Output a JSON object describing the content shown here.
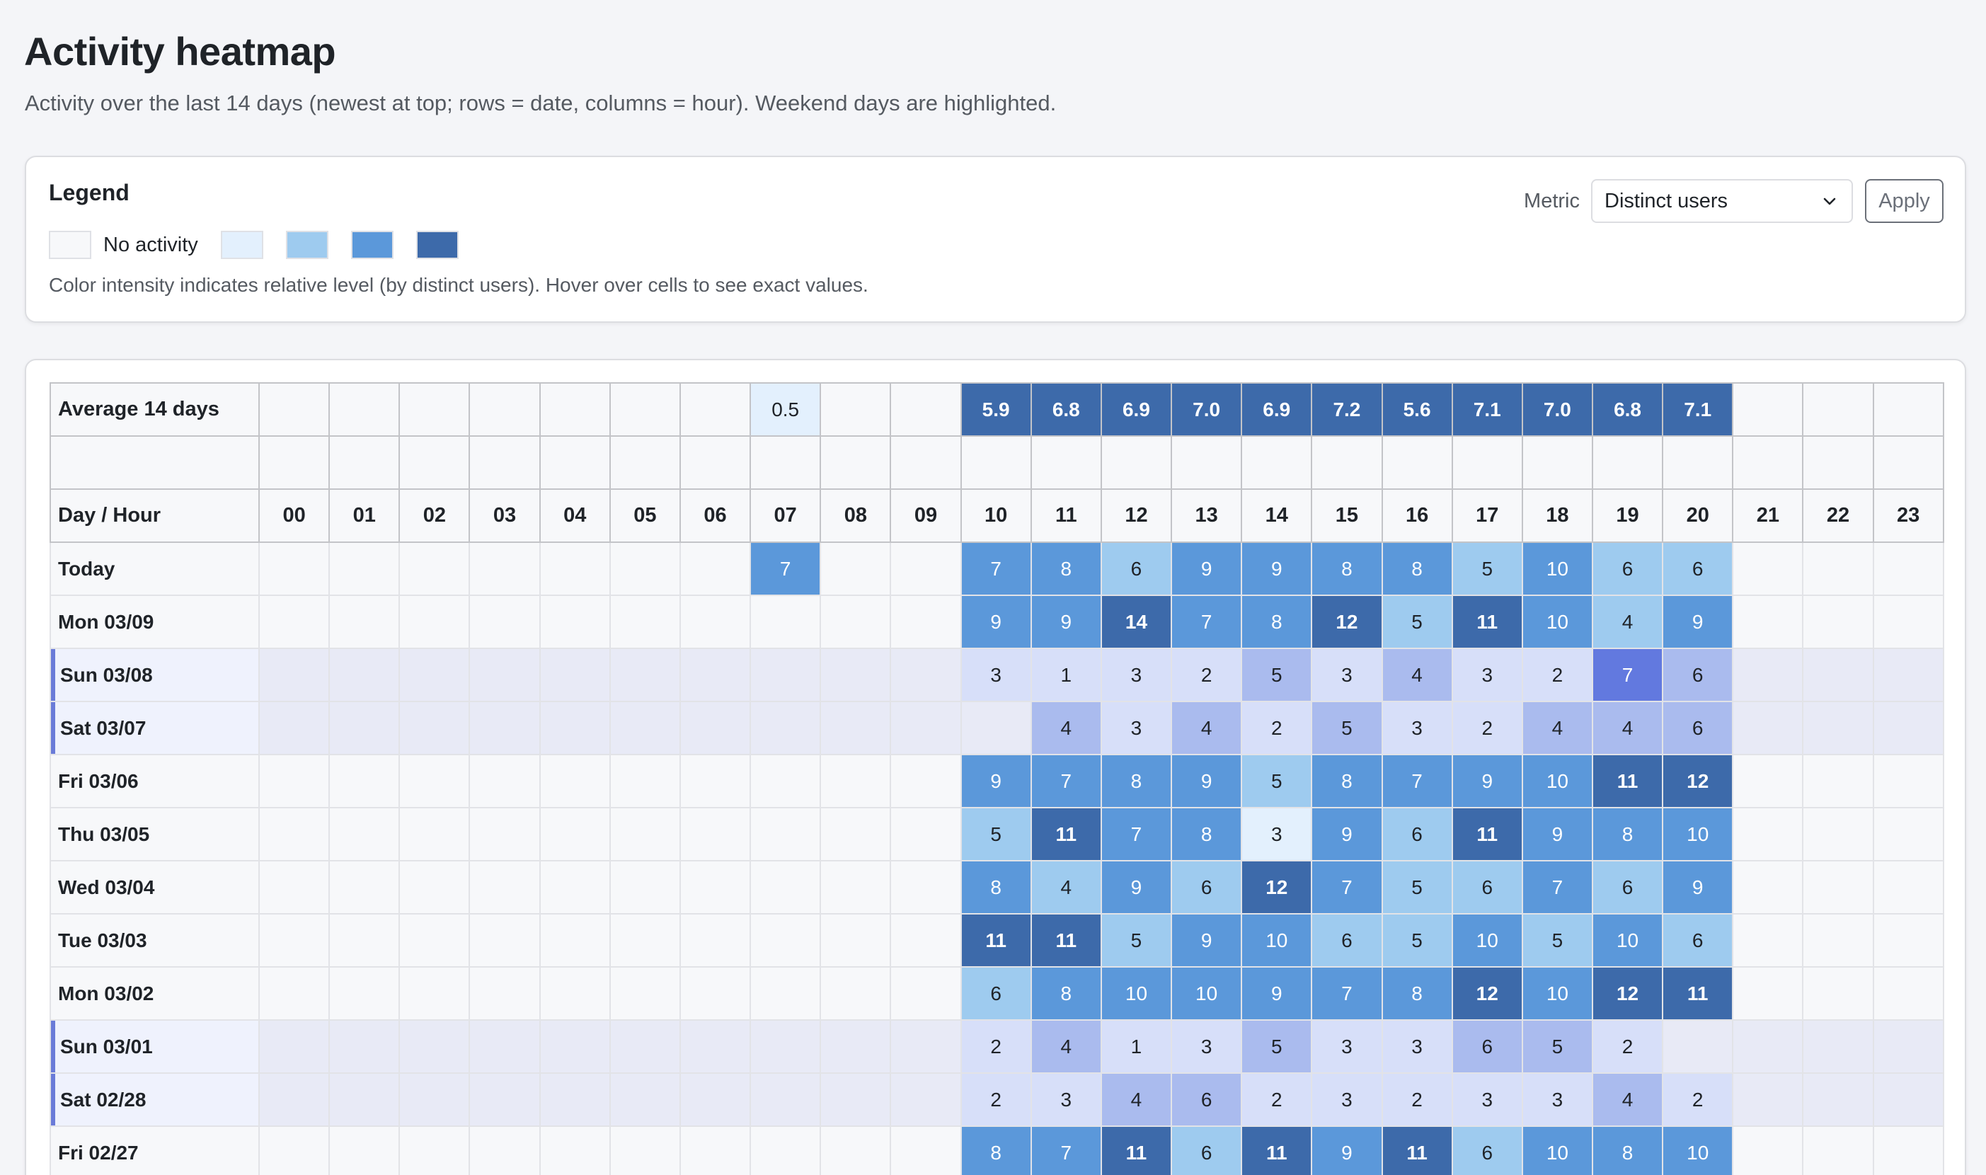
{
  "page": {
    "title": "Activity heatmap",
    "subtitle": "Activity over the last 14 days (newest at top; rows = date, columns = hour). Weekend days are highlighted."
  },
  "legend": {
    "title": "Legend",
    "no_activity_label": "No activity",
    "swatches": [
      {
        "level": "none",
        "color": "#f7f8fa"
      },
      {
        "level": "low",
        "color": "#e3f0fd"
      },
      {
        "level": "medium",
        "color": "#9ecbef"
      },
      {
        "level": "high",
        "color": "#5b98da"
      },
      {
        "level": "very-high",
        "color": "#3d6aaa"
      }
    ],
    "description": "Color intensity indicates relative level (by distinct users). Hover over cells to see exact values."
  },
  "controls": {
    "metric_label": "Metric",
    "metric_value": "Distinct users",
    "apply_label": "Apply"
  },
  "colors": {
    "weekday": {
      "none": "#f7f8fa",
      "l1": "#e3f0fd",
      "l2": "#9ecbef",
      "l3": "#5b98da",
      "l4": "#3d6aaa"
    },
    "weekend": {
      "none": "#e8eaf6",
      "l1": "#d7dff9",
      "l2": "#aabbee",
      "l3": "#6279df"
    },
    "weekend_accent": "#6a7bd8"
  },
  "table": {
    "average_label": "Average 14 days",
    "header_label": "Day / Hour",
    "hours": [
      "00",
      "01",
      "02",
      "03",
      "04",
      "05",
      "06",
      "07",
      "08",
      "09",
      "10",
      "11",
      "12",
      "13",
      "14",
      "15",
      "16",
      "17",
      "18",
      "19",
      "20",
      "21",
      "22",
      "23"
    ],
    "averages": [
      "",
      "",
      "",
      "",
      "",
      "",
      "",
      "0.5",
      "",
      "",
      "5.9",
      "6.8",
      "6.9",
      "7.0",
      "6.9",
      "7.2",
      "5.6",
      "7.1",
      "7.0",
      "6.8",
      "7.1",
      "",
      "",
      ""
    ],
    "rows": [
      {
        "label": "Today",
        "weekend": false,
        "values": [
          "",
          "",
          "",
          "",
          "",
          "",
          "",
          "7",
          "",
          "",
          "7",
          "8",
          "6",
          "9",
          "9",
          "8",
          "8",
          "5",
          "10",
          "6",
          "6",
          "",
          "",
          ""
        ]
      },
      {
        "label": "Mon 03/09",
        "weekend": false,
        "values": [
          "",
          "",
          "",
          "",
          "",
          "",
          "",
          "",
          "",
          "",
          "9",
          "9",
          "14",
          "7",
          "8",
          "12",
          "5",
          "11",
          "10",
          "4",
          "9",
          "",
          "",
          ""
        ]
      },
      {
        "label": "Sun 03/08",
        "weekend": true,
        "values": [
          "",
          "",
          "",
          "",
          "",
          "",
          "",
          "",
          "",
          "",
          "3",
          "1",
          "3",
          "2",
          "5",
          "3",
          "4",
          "3",
          "2",
          "7",
          "6",
          "",
          "",
          ""
        ]
      },
      {
        "label": "Sat 03/07",
        "weekend": true,
        "values": [
          "",
          "",
          "",
          "",
          "",
          "",
          "",
          "",
          "",
          "",
          "",
          "4",
          "3",
          "4",
          "2",
          "5",
          "3",
          "2",
          "4",
          "4",
          "6",
          "",
          "",
          ""
        ]
      },
      {
        "label": "Fri 03/06",
        "weekend": false,
        "values": [
          "",
          "",
          "",
          "",
          "",
          "",
          "",
          "",
          "",
          "",
          "9",
          "7",
          "8",
          "9",
          "5",
          "8",
          "7",
          "9",
          "10",
          "11",
          "12",
          "",
          "",
          ""
        ]
      },
      {
        "label": "Thu 03/05",
        "weekend": false,
        "values": [
          "",
          "",
          "",
          "",
          "",
          "",
          "",
          "",
          "",
          "",
          "5",
          "11",
          "7",
          "8",
          "3",
          "9",
          "6",
          "11",
          "9",
          "8",
          "10",
          "",
          "",
          ""
        ]
      },
      {
        "label": "Wed 03/04",
        "weekend": false,
        "values": [
          "",
          "",
          "",
          "",
          "",
          "",
          "",
          "",
          "",
          "",
          "8",
          "4",
          "9",
          "6",
          "12",
          "7",
          "5",
          "6",
          "7",
          "6",
          "9",
          "",
          "",
          ""
        ]
      },
      {
        "label": "Tue 03/03",
        "weekend": false,
        "values": [
          "",
          "",
          "",
          "",
          "",
          "",
          "",
          "",
          "",
          "",
          "11",
          "11",
          "5",
          "9",
          "10",
          "6",
          "5",
          "10",
          "5",
          "10",
          "6",
          "",
          "",
          ""
        ]
      },
      {
        "label": "Mon 03/02",
        "weekend": false,
        "values": [
          "",
          "",
          "",
          "",
          "",
          "",
          "",
          "",
          "",
          "",
          "6",
          "8",
          "10",
          "10",
          "9",
          "7",
          "8",
          "12",
          "10",
          "12",
          "11",
          "",
          "",
          ""
        ]
      },
      {
        "label": "Sun 03/01",
        "weekend": true,
        "values": [
          "",
          "",
          "",
          "",
          "",
          "",
          "",
          "",
          "",
          "",
          "2",
          "4",
          "1",
          "3",
          "5",
          "3",
          "3",
          "6",
          "5",
          "2",
          "",
          "",
          "",
          ""
        ]
      },
      {
        "label": "Sat 02/28",
        "weekend": true,
        "values": [
          "",
          "",
          "",
          "",
          "",
          "",
          "",
          "",
          "",
          "",
          "2",
          "3",
          "4",
          "6",
          "2",
          "3",
          "2",
          "3",
          "3",
          "4",
          "2",
          "",
          "",
          ""
        ]
      },
      {
        "label": "Fri 02/27",
        "weekend": false,
        "values": [
          "",
          "",
          "",
          "",
          "",
          "",
          "",
          "",
          "",
          "",
          "8",
          "7",
          "11",
          "6",
          "11",
          "9",
          "11",
          "6",
          "10",
          "8",
          "10",
          "",
          "",
          ""
        ]
      }
    ]
  },
  "chart_data": {
    "type": "heatmap",
    "title": "Activity heatmap",
    "subtitle": "Activity over the last 14 days (newest at top; rows = date, columns = hour). Weekend days are highlighted.",
    "metric": "Distinct users",
    "xlabel": "Hour",
    "ylabel": "Day",
    "x": [
      "00",
      "01",
      "02",
      "03",
      "04",
      "05",
      "06",
      "07",
      "08",
      "09",
      "10",
      "11",
      "12",
      "13",
      "14",
      "15",
      "16",
      "17",
      "18",
      "19",
      "20",
      "21",
      "22",
      "23"
    ],
    "y": [
      "Today",
      "Mon 03/09",
      "Sun 03/08",
      "Sat 03/07",
      "Fri 03/06",
      "Thu 03/05",
      "Wed 03/04",
      "Tue 03/03",
      "Mon 03/02",
      "Sun 03/01",
      "Sat 02/28",
      "Fri 02/27"
    ],
    "average_14_days": [
      null,
      null,
      null,
      null,
      null,
      null,
      null,
      0.5,
      null,
      null,
      5.9,
      6.8,
      6.9,
      7.0,
      6.9,
      7.2,
      5.6,
      7.1,
      7.0,
      6.8,
      7.1,
      null,
      null,
      null
    ],
    "values": [
      [
        null,
        null,
        null,
        null,
        null,
        null,
        null,
        7,
        null,
        null,
        7,
        8,
        6,
        9,
        9,
        8,
        8,
        5,
        10,
        6,
        6,
        null,
        null,
        null
      ],
      [
        null,
        null,
        null,
        null,
        null,
        null,
        null,
        null,
        null,
        null,
        9,
        9,
        14,
        7,
        8,
        12,
        5,
        11,
        10,
        4,
        9,
        null,
        null,
        null
      ],
      [
        null,
        null,
        null,
        null,
        null,
        null,
        null,
        null,
        null,
        null,
        3,
        1,
        3,
        2,
        5,
        3,
        4,
        3,
        2,
        7,
        6,
        null,
        null,
        null
      ],
      [
        null,
        null,
        null,
        null,
        null,
        null,
        null,
        null,
        null,
        null,
        null,
        4,
        3,
        4,
        2,
        5,
        3,
        2,
        4,
        4,
        6,
        null,
        null,
        null
      ],
      [
        null,
        null,
        null,
        null,
        null,
        null,
        null,
        null,
        null,
        null,
        9,
        7,
        8,
        9,
        5,
        8,
        7,
        9,
        10,
        11,
        12,
        null,
        null,
        null
      ],
      [
        null,
        null,
        null,
        null,
        null,
        null,
        null,
        null,
        null,
        null,
        5,
        11,
        7,
        8,
        3,
        9,
        6,
        11,
        9,
        8,
        10,
        null,
        null,
        null
      ],
      [
        null,
        null,
        null,
        null,
        null,
        null,
        null,
        null,
        null,
        null,
        8,
        4,
        9,
        6,
        12,
        7,
        5,
        6,
        7,
        6,
        9,
        null,
        null,
        null
      ],
      [
        null,
        null,
        null,
        null,
        null,
        null,
        null,
        null,
        null,
        null,
        11,
        11,
        5,
        9,
        10,
        6,
        5,
        10,
        5,
        10,
        6,
        null,
        null,
        null
      ],
      [
        null,
        null,
        null,
        null,
        null,
        null,
        null,
        null,
        null,
        null,
        6,
        8,
        10,
        10,
        9,
        7,
        8,
        12,
        10,
        12,
        11,
        null,
        null,
        null
      ],
      [
        null,
        null,
        null,
        null,
        null,
        null,
        null,
        null,
        null,
        null,
        2,
        4,
        1,
        3,
        5,
        3,
        3,
        6,
        5,
        2,
        null,
        null,
        null,
        null
      ],
      [
        null,
        null,
        null,
        null,
        null,
        null,
        null,
        null,
        null,
        null,
        2,
        3,
        4,
        6,
        2,
        3,
        2,
        3,
        3,
        4,
        2,
        null,
        null,
        null
      ],
      [
        null,
        null,
        null,
        null,
        null,
        null,
        null,
        null,
        null,
        null,
        8,
        7,
        11,
        6,
        11,
        9,
        11,
        6,
        10,
        8,
        10,
        null,
        null,
        null
      ]
    ],
    "weekend_rows": [
      "Sun 03/08",
      "Sat 03/07",
      "Sun 03/01",
      "Sat 02/28"
    ],
    "legend": [
      "No activity",
      "low",
      "medium",
      "high",
      "very high"
    ]
  }
}
